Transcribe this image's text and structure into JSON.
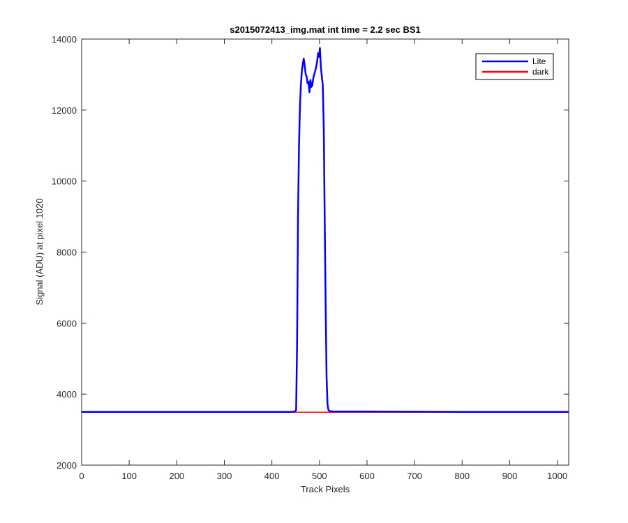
{
  "chart_data": {
    "type": "line",
    "title": "s2015072413_img.mat int time = 2.2 sec   BS1",
    "xlabel": "Track Pixels",
    "ylabel": "Signal (ADU) at pixel 1020",
    "xlim": [
      0,
      1024
    ],
    "ylim": [
      2000,
      14000
    ],
    "xticks": [
      0,
      100,
      200,
      300,
      400,
      500,
      600,
      700,
      800,
      900,
      1000
    ],
    "yticks": [
      2000,
      4000,
      6000,
      8000,
      10000,
      12000,
      14000
    ],
    "grid": false,
    "legend_position": "top-right",
    "series": [
      {
        "name": "Lite",
        "color": "#0000ff",
        "x": [
          0,
          100,
          200,
          300,
          400,
          440,
          448,
          451,
          453,
          455,
          457,
          459,
          461,
          463,
          465,
          467,
          469,
          471,
          473,
          475,
          477,
          479,
          481,
          483,
          485,
          487,
          489,
          491,
          493,
          495,
          497,
          499,
          501,
          503,
          505,
          507,
          509,
          511,
          513,
          515,
          517,
          519,
          521,
          530,
          600,
          700,
          800,
          900,
          1024
        ],
        "y": [
          3500,
          3500,
          3500,
          3500,
          3500,
          3500,
          3510,
          3550,
          5500,
          9000,
          11000,
          12100,
          12700,
          13100,
          13300,
          13450,
          13250,
          13000,
          12950,
          12750,
          12800,
          12500,
          12850,
          12650,
          12700,
          12900,
          13000,
          13100,
          13200,
          13350,
          13600,
          13500,
          13750,
          13200,
          12950,
          12700,
          11500,
          9000,
          6500,
          4500,
          3700,
          3550,
          3520,
          3510,
          3510,
          3505,
          3500,
          3500,
          3500
        ]
      },
      {
        "name": "dark",
        "color": "#ff0000",
        "x": [
          0,
          100,
          200,
          300,
          400,
          500,
          600,
          700,
          800,
          900,
          1024
        ],
        "y": [
          3490,
          3490,
          3490,
          3490,
          3490,
          3490,
          3490,
          3490,
          3490,
          3490,
          3490
        ]
      }
    ]
  }
}
